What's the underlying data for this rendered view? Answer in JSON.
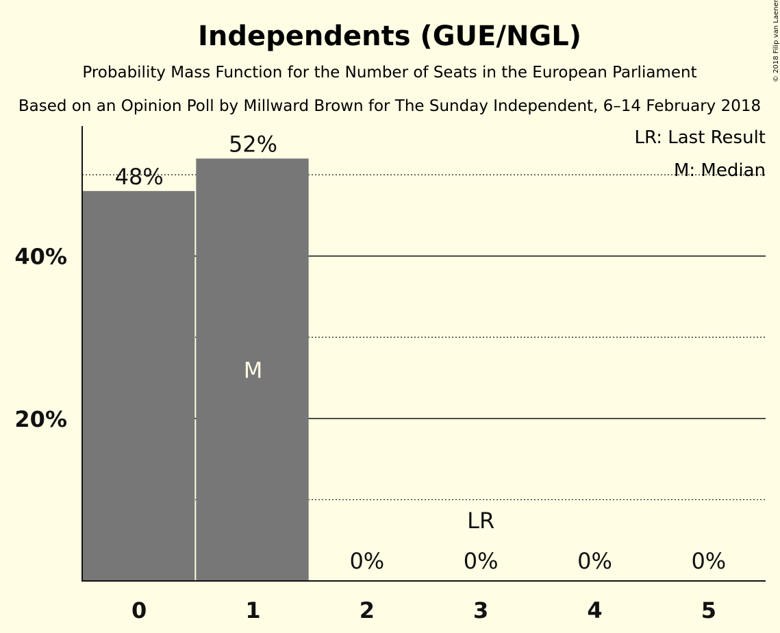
{
  "chart_data": {
    "type": "bar",
    "title": "Independents (GUE/NGL)",
    "subtitle": "Probability Mass Function for the Number of Seats in the European Parliament",
    "subtitle2": "Based on an Opinion Poll by Millward Brown for The Sunday Independent, 6–14 February 2018",
    "copyright": "© 2018 Filip van Laenen",
    "categories": [
      "0",
      "1",
      "2",
      "3",
      "4",
      "5"
    ],
    "values": [
      48,
      52,
      0,
      0,
      0,
      0
    ],
    "value_labels": [
      "48%",
      "52%",
      "0%",
      "0%",
      "0%",
      "0%"
    ],
    "ylim": [
      0,
      56
    ],
    "yticks": [
      20,
      40
    ],
    "ytick_labels": [
      "20%",
      "40%"
    ],
    "gridlines_solid": [
      20,
      40
    ],
    "gridlines_dotted": [
      10,
      30,
      50
    ],
    "median_index": 1,
    "median_marker": "M",
    "last_result_index": 3,
    "last_result_marker": "LR",
    "legend": [
      "LR: Last Result",
      "M: Median"
    ],
    "legend_position": "top-right",
    "colors": {
      "background": "#FFFDE4",
      "bar": "#777777",
      "text": "#111111",
      "median_text": "#FFFDE4"
    }
  }
}
